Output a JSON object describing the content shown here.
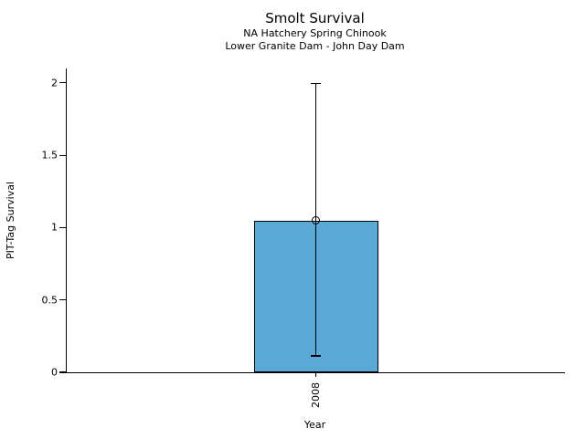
{
  "chart_data": {
    "type": "bar",
    "title": "Smolt Survival",
    "subtitle": [
      "NA Hatchery Spring Chinook",
      "Lower Granite Dam - John Day Dam"
    ],
    "xlabel": "Year",
    "ylabel": "PIT-Tag Survival",
    "categories": [
      "2008"
    ],
    "values": [
      1.05
    ],
    "error_low": [
      0.11
    ],
    "error_high": [
      2.0
    ],
    "marker": "open-circle",
    "yticks": [
      0,
      0.5,
      1,
      1.5,
      2
    ],
    "ytick_labels": [
      "0",
      "0.5",
      "1",
      "1.5",
      "2"
    ],
    "ylim": [
      0,
      2.1
    ],
    "x_tick_rotation": 90,
    "grid": false,
    "legend": "none",
    "bar_color": "#5BA9D6",
    "bar_edge_color": "#000000",
    "background_color": "#FFFFFF",
    "text_color": "#000000"
  }
}
